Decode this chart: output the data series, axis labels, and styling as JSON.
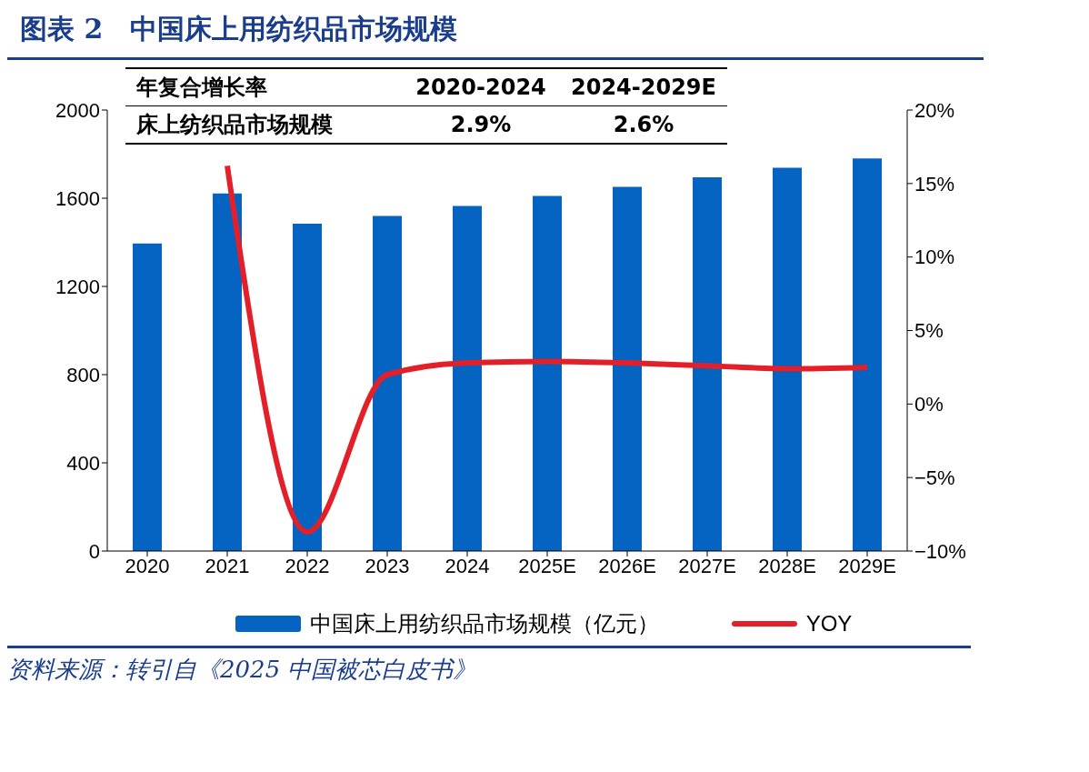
{
  "chart_data": {
    "type": "bar",
    "title": "图表 2　中国床上用纺织品市场规模",
    "categories": [
      "2020",
      "2021",
      "2022",
      "2023",
      "2024",
      "2025E",
      "2026E",
      "2027E",
      "2028E",
      "2029E"
    ],
    "series": [
      {
        "name": "中国床上用纺织品市场规模（亿元）",
        "color": "#0563c1",
        "values": [
          1395,
          1622,
          1485,
          1520,
          1565,
          1610,
          1652,
          1695,
          1738,
          1780
        ]
      },
      {
        "name": "YOY",
        "type": "line",
        "axis": "y2",
        "color": "#e3202a",
        "values": [
          null,
          16.2,
          -8.7,
          2.0,
          2.8,
          2.9,
          2.8,
          2.6,
          2.4,
          2.5
        ]
      }
    ],
    "ylim": [
      0,
      2000
    ],
    "yticks": [
      0,
      400,
      800,
      1200,
      1600,
      2000
    ],
    "y2lim": [
      -10,
      20
    ],
    "y2ticks": [
      {
        "value": -10,
        "label": "−10%"
      },
      {
        "value": -5,
        "label": "−5%"
      },
      {
        "value": 0,
        "label": "0%"
      },
      {
        "value": 5,
        "label": "5%"
      },
      {
        "value": 10,
        "label": "10%"
      },
      {
        "value": 15,
        "label": "15%"
      },
      {
        "value": 20,
        "label": "20%"
      }
    ],
    "grid": false,
    "legend": "bottom",
    "annotations": [
      "年复合增长率",
      "2020-2024",
      "2024-2029E",
      "床上纺织品市场规模",
      "2.9%",
      "2.6%",
      "资料来源：转引自《2025 中国被芯白皮书》"
    ]
  }
}
